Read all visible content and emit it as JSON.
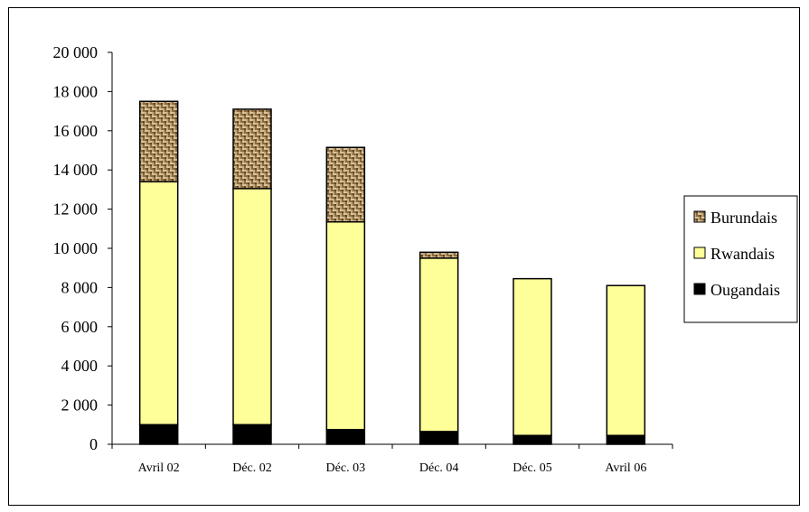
{
  "chart_data": {
    "type": "bar",
    "stacked": true,
    "categories": [
      "Avril 02",
      "Déc. 02",
      "Déc. 03",
      "Déc. 04",
      "Déc. 05",
      "Avril 06"
    ],
    "series": [
      {
        "name": "Ougandais",
        "color": "#000000",
        "values": [
          1000,
          1000,
          750,
          650,
          450,
          450
        ]
      },
      {
        "name": "Rwandais",
        "color": "#ffff99",
        "values": [
          12400,
          12050,
          10600,
          8850,
          8000,
          7650
        ]
      },
      {
        "name": "Burundais",
        "color": "#a0845c",
        "pattern": "woven",
        "values": [
          4100,
          4050,
          3800,
          300,
          0,
          0
        ]
      }
    ],
    "ylim": [
      0,
      20000
    ],
    "yticks": [
      0,
      2000,
      4000,
      6000,
      8000,
      10000,
      12000,
      14000,
      16000,
      18000,
      20000
    ],
    "ytick_labels": [
      "0",
      "2 000",
      "4 000",
      "6 000",
      "8 000",
      "10 000",
      "12 000",
      "14 000",
      "16 000",
      "18 000",
      "20 000"
    ],
    "legend": {
      "position": "right",
      "order": [
        "Burundais",
        "Rwandais",
        "Ougandais"
      ]
    },
    "grid": false,
    "title": "",
    "xlabel": "",
    "ylabel": ""
  }
}
